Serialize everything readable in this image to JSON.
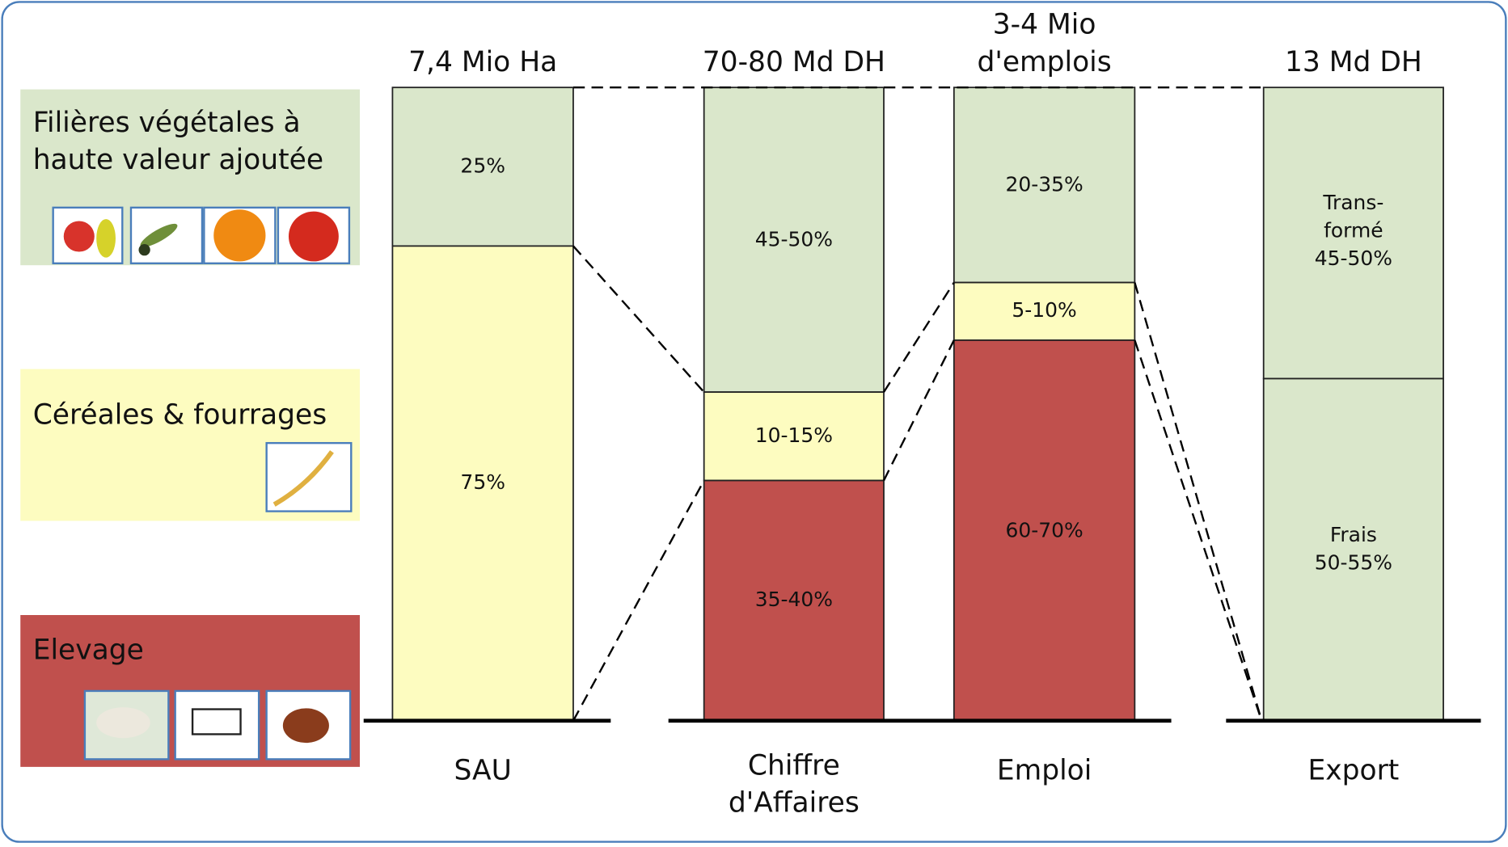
{
  "legend": [
    {
      "lines": [
        "Filières végétales à",
        "haute valeur ajoutée"
      ]
    },
    {
      "lines": [
        "Céréales & fourrages"
      ]
    },
    {
      "lines": [
        "Elevage"
      ]
    }
  ],
  "columns": [
    {
      "title": [
        "7,4 Mio Ha"
      ],
      "label": [
        "SAU"
      ],
      "segments": [
        {
          "lines": [
            "25%"
          ]
        },
        {
          "lines": [
            "75%"
          ]
        }
      ]
    },
    {
      "title": [
        "70-80 Md DH"
      ],
      "label": [
        "Chiffre",
        "d'Affaires"
      ],
      "segments": [
        {
          "lines": [
            "45-50%"
          ]
        },
        {
          "lines": [
            "10-15%"
          ]
        },
        {
          "lines": [
            "35-40%"
          ]
        }
      ]
    },
    {
      "title": [
        "3-4 Mio",
        "d'emplois"
      ],
      "label": [
        "Emploi"
      ],
      "segments": [
        {
          "lines": [
            "20-35%"
          ]
        },
        {
          "lines": [
            "5-10%"
          ]
        },
        {
          "lines": [
            "60-70%"
          ]
        }
      ]
    },
    {
      "title": [
        "13 Md DH"
      ],
      "label": [
        "Export"
      ],
      "segments": [
        {
          "lines": [
            "Trans-",
            "formé",
            "45-50%"
          ]
        },
        {
          "lines": [
            "Frais",
            "50-55%"
          ]
        }
      ]
    }
  ]
}
